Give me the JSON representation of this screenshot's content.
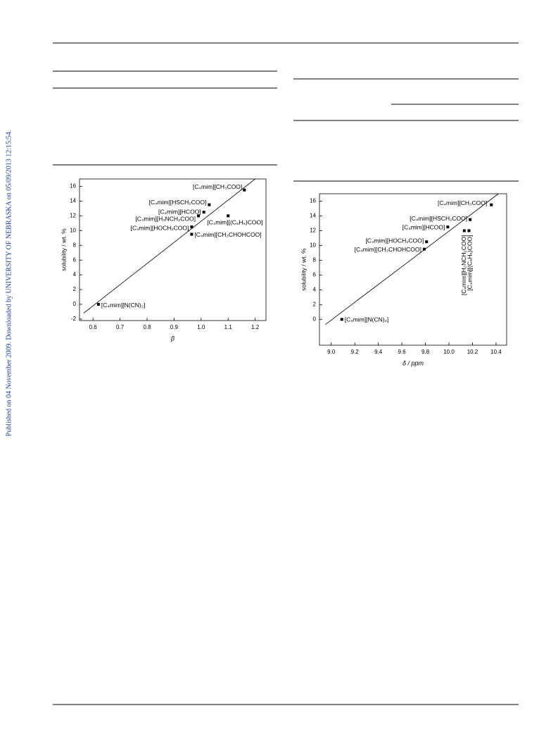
{
  "sidebar": "Published on 04 November 2009. Downloaded by UNIVERSITY OF NEBRASKA on 05/09/2013 12:15:54.",
  "chart_data": [
    {
      "type": "scatter",
      "xlabel": "β",
      "ylabel": "solubility / wt. %",
      "color": "#000000",
      "x": [
        1.16,
        1.03,
        1.01,
        0.99,
        1.1,
        0.965,
        0.965,
        0.62
      ],
      "values": [
        15.5,
        13.5,
        12.5,
        12,
        12,
        10.5,
        9.5,
        0
      ],
      "point_labels": [
        "[C₄mim][CH₃COO]",
        "[C₄mim][HSCH₂COO]",
        "[C₄mim][HCOO]",
        "[C₄mim][H₂NCH₂COO]",
        "[C₄mim][(C₆H₅)COO]",
        "[C₄mim][HOCH₂COO]",
        "[C₄mim][CH₃CHOHCOO]",
        "[C₄mim][N(CN)₂]"
      ],
      "trend_line": {
        "x": [
          0.565,
          1.2
        ],
        "y": [
          -1.2,
          17
        ]
      },
      "xlim": [
        0.55,
        1.24
      ],
      "ylim": [
        -2.2,
        17
      ],
      "xticks": [
        0.6,
        0.7,
        0.8,
        0.9,
        {
          "value": 1,
          "label": "1.0"
        },
        1.1,
        1.2
      ],
      "yticks": [
        -2,
        0,
        2,
        4,
        6,
        8,
        10,
        12,
        14,
        16
      ]
    },
    {
      "type": "scatter",
      "xlabel": "δ / ppm",
      "ylabel": "solubility / wt. %",
      "color": "#000000",
      "x": [
        10.36,
        10.18,
        9.99,
        10.13,
        10.17,
        9.81,
        9.79,
        9.09
      ],
      "values": [
        15.5,
        13.5,
        12.5,
        12,
        12,
        10.5,
        9.5,
        0
      ],
      "point_labels": [
        "[C₄mim][CH₃COO]",
        "[C₄mim][HSCH₂COO]",
        "[C₄mim][HCOO]",
        "[C₄mim][H₂NCH₂COO]",
        "[C₄mim][(C₆H₅)COO]",
        "[C₄mim][HOCH₂COO]",
        "[C₄mim][CH₃CHOHCOO]",
        "[C₄mim][N(CN)₂]"
      ],
      "trend_line": {
        "x": [
          8.95,
          10.42
        ],
        "y": [
          -0.7,
          17
        ]
      },
      "xlim": [
        8.9,
        10.49
      ],
      "ylim": [
        -3.5,
        17
      ],
      "xticks": [
        {
          "value": 9,
          "label": "9.0"
        },
        9.2,
        9.4,
        9.6,
        9.8,
        {
          "value": 10,
          "label": "10.0"
        },
        10.2,
        10.4
      ],
      "yticks": [
        0,
        2,
        4,
        6,
        8,
        10,
        12,
        14,
        16
      ]
    }
  ]
}
